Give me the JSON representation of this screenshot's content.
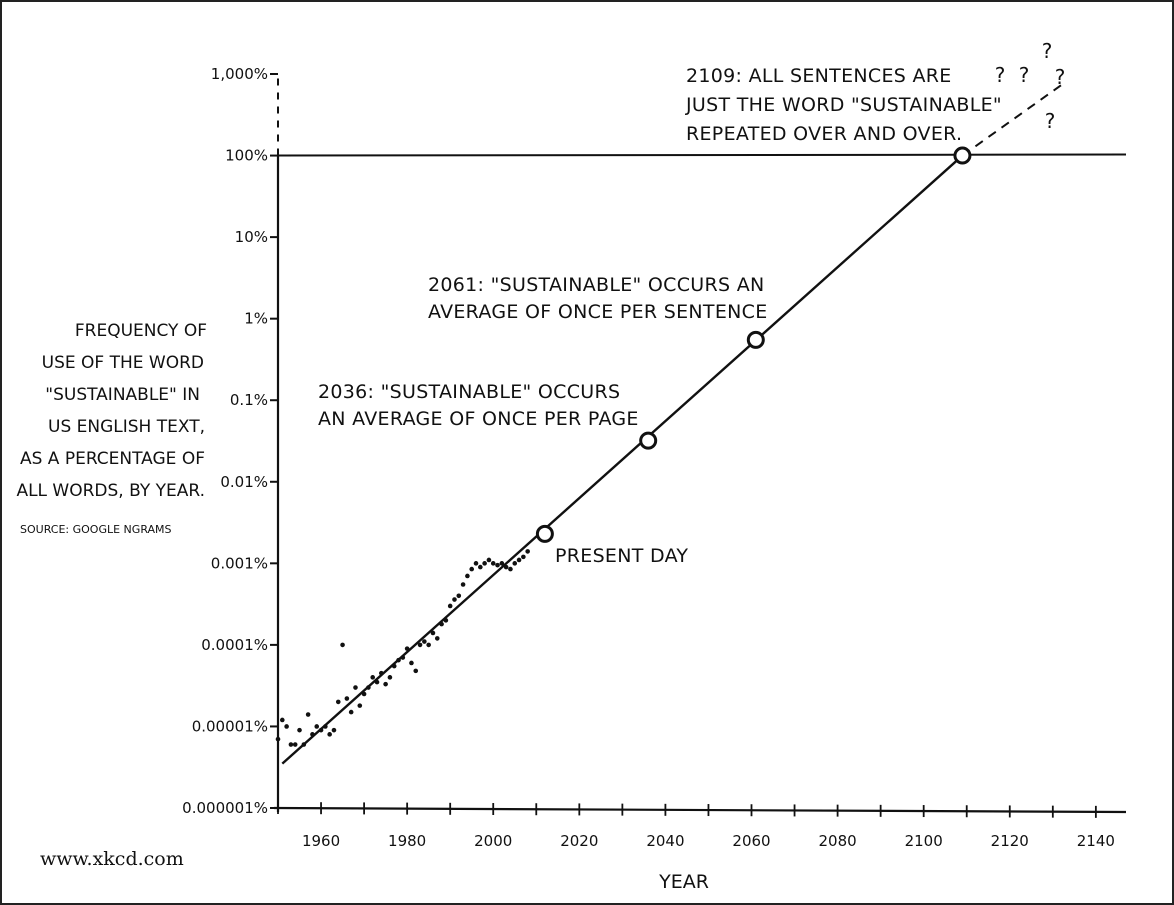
{
  "credit": "www.xkcd.com",
  "ylabel_lines": [
    "FREQUENCY OF",
    "USE OF THE WORD",
    "\"SUSTAINABLE\" IN",
    "US ENGLISH TEXT,",
    "AS A PERCENTAGE OF",
    "ALL WORDS, BY YEAR."
  ],
  "source": "SOURCE: GOOGLE NGRAMS",
  "chart_data": {
    "type": "scatter",
    "xlabel": "YEAR",
    "x_ticks": [
      1960,
      1980,
      2000,
      2020,
      2040,
      2060,
      2080,
      2100,
      2120,
      2140
    ],
    "xlim": [
      1950,
      2147
    ],
    "y_scale": "log",
    "ylim_percent": [
      1e-06,
      1000
    ],
    "y_ticks": [
      {
        "value": 1e-06,
        "label": "0.000001%"
      },
      {
        "value": 1e-05,
        "label": "0.00001%"
      },
      {
        "value": 0.0001,
        "label": "0.0001%"
      },
      {
        "value": 0.001,
        "label": "0.001%"
      },
      {
        "value": 0.01,
        "label": "0.01%"
      },
      {
        "value": 0.1,
        "label": "0.1%"
      },
      {
        "value": 1,
        "label": "1%"
      },
      {
        "value": 10,
        "label": "10%"
      },
      {
        "value": 100,
        "label": "100%"
      },
      {
        "value": 1000,
        "label": "1,000%"
      }
    ],
    "reference_line_percent": 100,
    "trend_line": {
      "x": [
        1951,
        2109
      ],
      "y": [
        3.5e-06,
        100
      ]
    },
    "extrapolation": {
      "x": [
        2109,
        2133
      ],
      "y": [
        100,
        800
      ]
    },
    "data_points": [
      {
        "x": 1950,
        "y": 7e-06
      },
      {
        "x": 1951,
        "y": 1.2e-05
      },
      {
        "x": 1952,
        "y": 1e-05
      },
      {
        "x": 1953,
        "y": 6e-06
      },
      {
        "x": 1954,
        "y": 6e-06
      },
      {
        "x": 1955,
        "y": 9e-06
      },
      {
        "x": 1956,
        "y": 6e-06
      },
      {
        "x": 1957,
        "y": 1.4e-05
      },
      {
        "x": 1958,
        "y": 8e-06
      },
      {
        "x": 1959,
        "y": 1e-05
      },
      {
        "x": 1960,
        "y": 9e-06
      },
      {
        "x": 1961,
        "y": 1e-05
      },
      {
        "x": 1962,
        "y": 8e-06
      },
      {
        "x": 1963,
        "y": 9e-06
      },
      {
        "x": 1964,
        "y": 2e-05
      },
      {
        "x": 1965,
        "y": 0.0001
      },
      {
        "x": 1966,
        "y": 2.2e-05
      },
      {
        "x": 1967,
        "y": 1.5e-05
      },
      {
        "x": 1968,
        "y": 3e-05
      },
      {
        "x": 1969,
        "y": 1.8e-05
      },
      {
        "x": 1970,
        "y": 2.5e-05
      },
      {
        "x": 1971,
        "y": 3e-05
      },
      {
        "x": 1972,
        "y": 4e-05
      },
      {
        "x": 1973,
        "y": 3.5e-05
      },
      {
        "x": 1974,
        "y": 4.5e-05
      },
      {
        "x": 1975,
        "y": 3.3e-05
      },
      {
        "x": 1976,
        "y": 4e-05
      },
      {
        "x": 1977,
        "y": 5.5e-05
      },
      {
        "x": 1978,
        "y": 6.5e-05
      },
      {
        "x": 1979,
        "y": 7e-05
      },
      {
        "x": 1980,
        "y": 9e-05
      },
      {
        "x": 1981,
        "y": 6e-05
      },
      {
        "x": 1982,
        "y": 4.8e-05
      },
      {
        "x": 1983,
        "y": 0.0001
      },
      {
        "x": 1984,
        "y": 0.00011
      },
      {
        "x": 1985,
        "y": 0.0001
      },
      {
        "x": 1986,
        "y": 0.00014
      },
      {
        "x": 1987,
        "y": 0.00012
      },
      {
        "x": 1988,
        "y": 0.00018
      },
      {
        "x": 1989,
        "y": 0.0002
      },
      {
        "x": 1990,
        "y": 0.0003
      },
      {
        "x": 1991,
        "y": 0.00036
      },
      {
        "x": 1992,
        "y": 0.0004
      },
      {
        "x": 1993,
        "y": 0.00055
      },
      {
        "x": 1994,
        "y": 0.0007
      },
      {
        "x": 1995,
        "y": 0.00085
      },
      {
        "x": 1996,
        "y": 0.001
      },
      {
        "x": 1997,
        "y": 0.0009
      },
      {
        "x": 1998,
        "y": 0.001
      },
      {
        "x": 1999,
        "y": 0.0011
      },
      {
        "x": 2000,
        "y": 0.001
      },
      {
        "x": 2001,
        "y": 0.00095
      },
      {
        "x": 2002,
        "y": 0.001
      },
      {
        "x": 2003,
        "y": 0.0009
      },
      {
        "x": 2004,
        "y": 0.00085
      },
      {
        "x": 2005,
        "y": 0.001
      },
      {
        "x": 2006,
        "y": 0.0011
      },
      {
        "x": 2007,
        "y": 0.0012
      },
      {
        "x": 2008,
        "y": 0.0014
      }
    ],
    "milestones": [
      {
        "year": 2012,
        "y": 0.0023,
        "label_lines": [
          "PRESENT DAY"
        ]
      },
      {
        "year": 2036,
        "y": 0.032,
        "label_lines": [
          "2036: \"SUSTAINABLE\" OCCURS",
          "AN AVERAGE OF ONCE PER PAGE"
        ]
      },
      {
        "year": 2061,
        "y": 0.55,
        "label_lines": [
          "2061: \"SUSTAINABLE\" OCCURS AN",
          "AVERAGE OF ONCE PER SENTENCE"
        ]
      },
      {
        "year": 2109,
        "y": 100,
        "label_lines": [
          "2109: ALL SENTENCES ARE",
          "JUST THE WORD \"SUSTAINABLE\"",
          "REPEATED OVER AND OVER."
        ]
      }
    ],
    "question_marks": [
      "?",
      "?",
      "?",
      "?",
      "?"
    ]
  }
}
